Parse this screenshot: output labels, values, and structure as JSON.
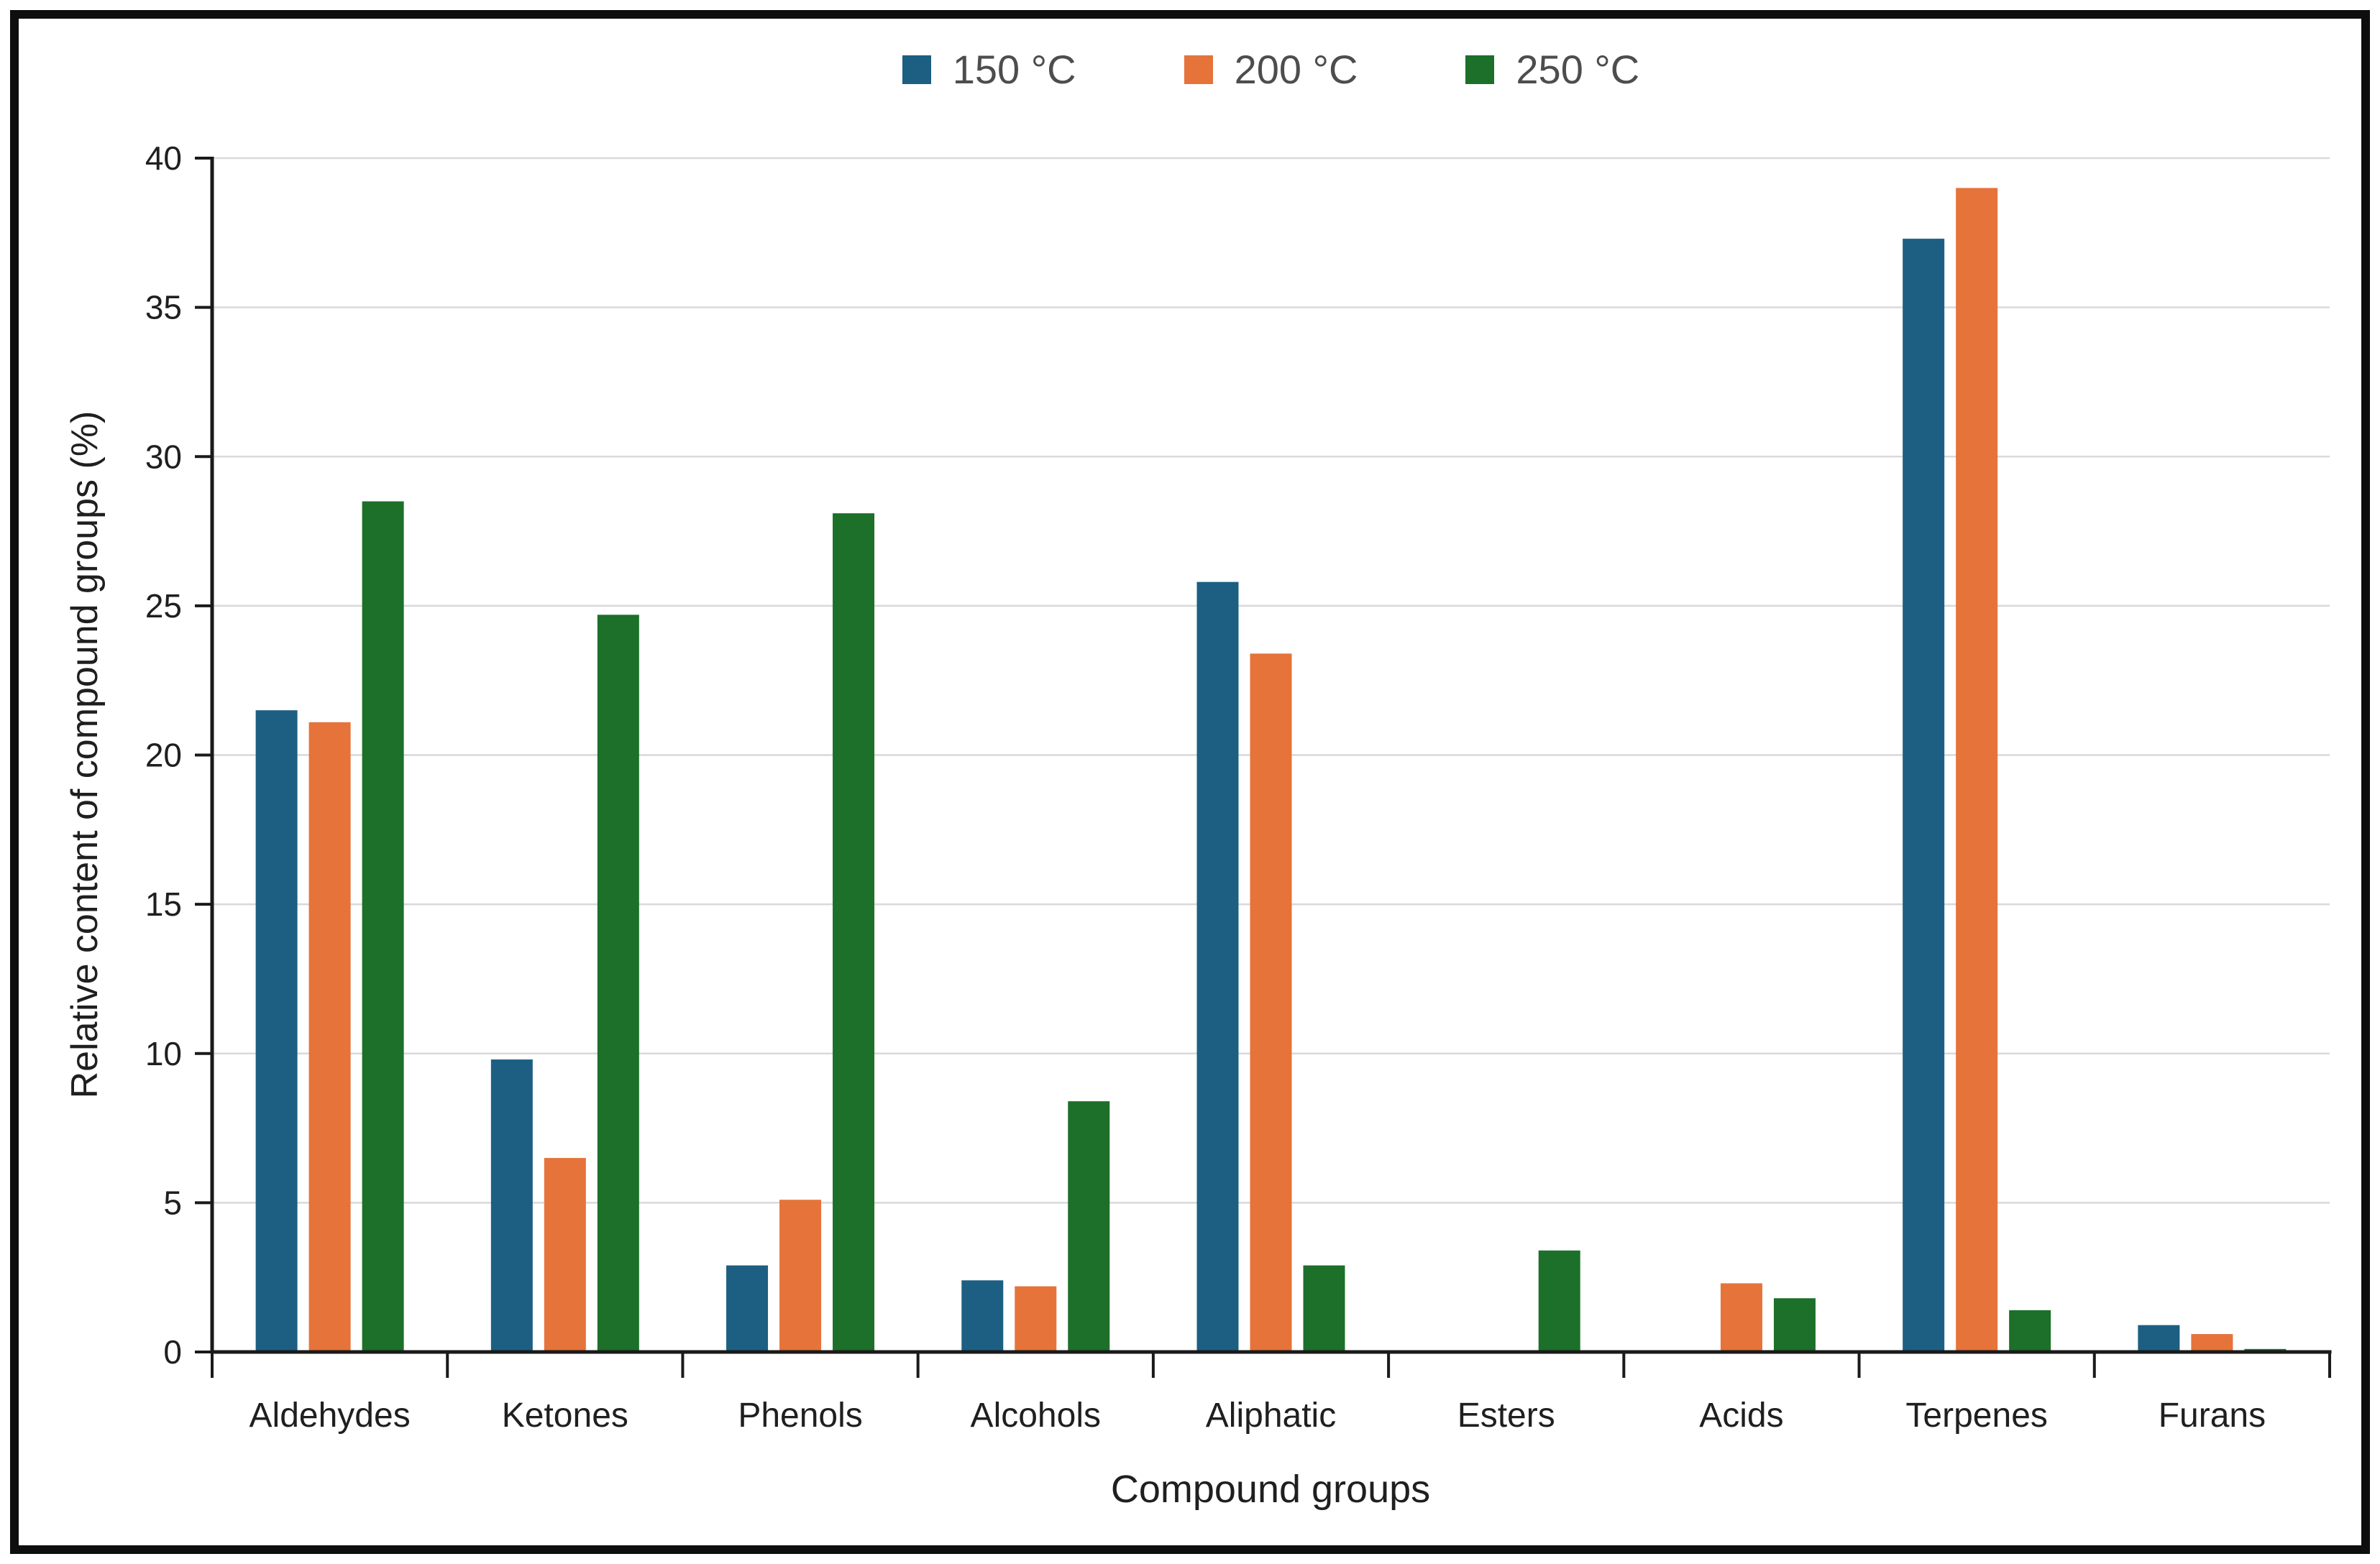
{
  "chart_data": {
    "type": "bar",
    "title": "",
    "xlabel": "Compound groups",
    "ylabel": "Relative content of compound groups (%)",
    "categories": [
      "Aldehydes",
      "Ketones",
      "Phenols",
      "Alcohols",
      "Aliphatic",
      "Esters",
      "Acids",
      "Terpenes",
      "Furans"
    ],
    "series": [
      {
        "name": "150 °C",
        "color": "#1C5F82",
        "values": [
          21.5,
          9.8,
          2.9,
          2.4,
          25.8,
          0,
          0,
          37.3,
          0.9
        ]
      },
      {
        "name": "200 °C",
        "color": "#E5733A",
        "values": [
          21.1,
          6.5,
          5.1,
          2.2,
          23.4,
          0,
          2.3,
          39.0,
          0.6
        ]
      },
      {
        "name": "250 °C",
        "color": "#1C7029",
        "values": [
          28.5,
          24.7,
          28.1,
          8.4,
          2.9,
          3.4,
          1.8,
          1.4,
          0.1
        ]
      }
    ],
    "ylim": [
      0,
      40
    ],
    "y_ticks": [
      0,
      5,
      10,
      15,
      20,
      25,
      30,
      35,
      40
    ],
    "grid": "horizontal",
    "legend_position": "top",
    "gridline_color": "#D9D9D9",
    "axis_color": "#1a1a1a"
  }
}
